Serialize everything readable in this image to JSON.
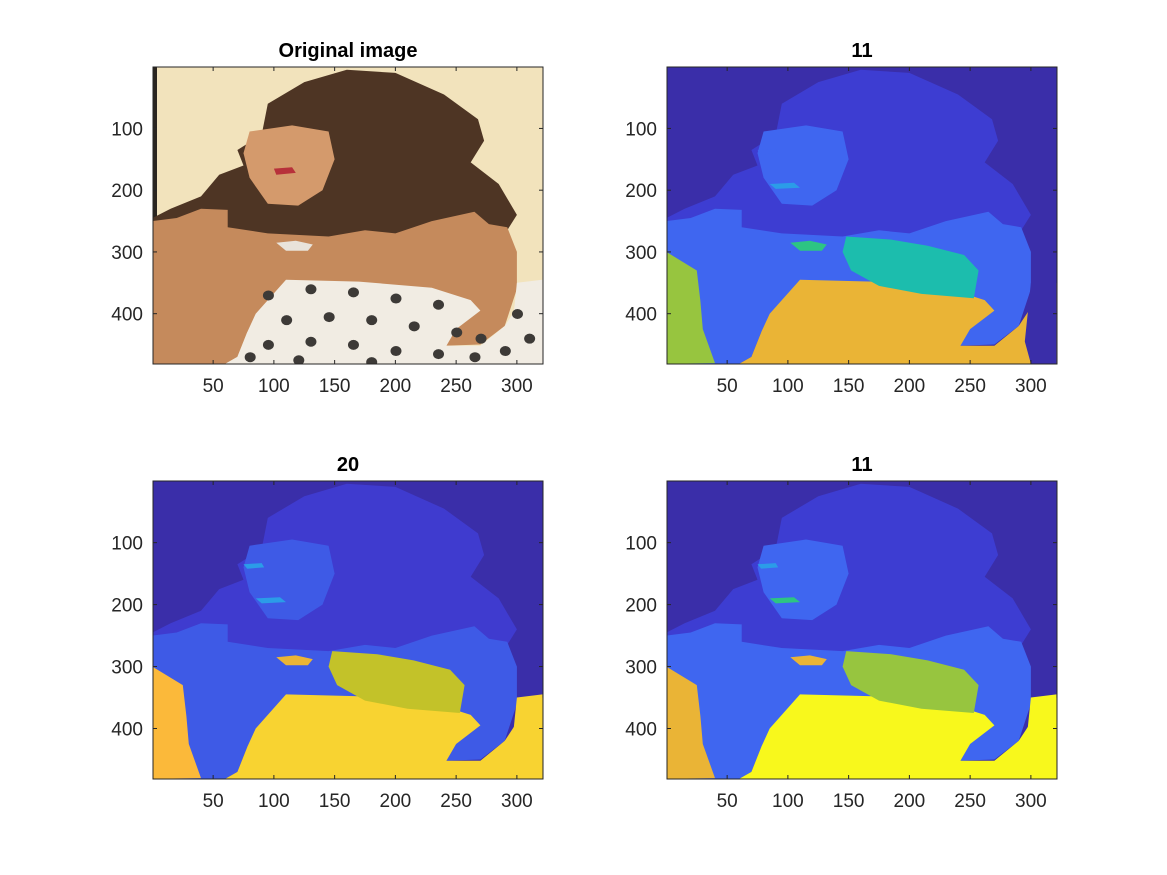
{
  "chart_data": [
    {
      "type": "image",
      "title": "Original image",
      "xlabel": "",
      "ylabel": "",
      "xlim": [
        0.5,
        321.5
      ],
      "ylim": [
        0.5,
        481.5
      ],
      "y_reversed": true,
      "xticks": [
        50,
        100,
        150,
        200,
        250,
        300
      ],
      "yticks": [
        100,
        200,
        300,
        400
      ],
      "content": "photo",
      "colors": {
        "background": "#f2e3bc",
        "hair": "#4e3524",
        "skin": "#c58a5c",
        "cloth": "#f1ece3",
        "dots": "#3d3a37"
      }
    },
    {
      "type": "segmentation",
      "title": "11",
      "xlabel": "",
      "ylabel": "",
      "xlim": [
        0.5,
        321.5
      ],
      "ylim": [
        0.5,
        481.5
      ],
      "y_reversed": true,
      "xticks": [
        50,
        100,
        150,
        200,
        250,
        300
      ],
      "yticks": [
        100,
        200,
        300,
        400
      ],
      "colors": {
        "bg": "#3a2ea9",
        "hair": "#3d3dd2",
        "skin": "#3f66f0",
        "cloth": "#eab436",
        "hand": "#1cbdad",
        "lip": "#2dc583",
        "left": "#97c53f",
        "wall": "#3a2ea9"
      }
    },
    {
      "type": "segmentation",
      "title": "20",
      "xlabel": "",
      "ylabel": "",
      "xlim": [
        0.5,
        321.5
      ],
      "ylim": [
        0.5,
        481.5
      ],
      "y_reversed": true,
      "xticks": [
        50,
        100,
        150,
        200,
        250,
        300
      ],
      "yticks": [
        100,
        200,
        300,
        400
      ],
      "colors": {
        "bg": "#3a2ea9",
        "hair": "#3f3bcf",
        "skin": "#3e5ae6",
        "cloth": "#f8d331",
        "hand": "#c3c229",
        "lip": "#eab436",
        "left": "#fbb93a",
        "wall": "#f8d331"
      }
    },
    {
      "type": "segmentation",
      "title": "11",
      "xlabel": "",
      "ylabel": "",
      "xlim": [
        0.5,
        321.5
      ],
      "ylim": [
        0.5,
        481.5
      ],
      "y_reversed": true,
      "xticks": [
        50,
        100,
        150,
        200,
        250,
        300
      ],
      "yticks": [
        100,
        200,
        300,
        400
      ],
      "colors": {
        "bg": "#3a2ea9",
        "hair": "#3d3dd2",
        "skin": "#3f66f0",
        "cloth": "#f8f81c",
        "hand": "#97c53f",
        "lip": "#eab436",
        "left": "#eab436",
        "wall": "#f8f81c"
      }
    }
  ]
}
